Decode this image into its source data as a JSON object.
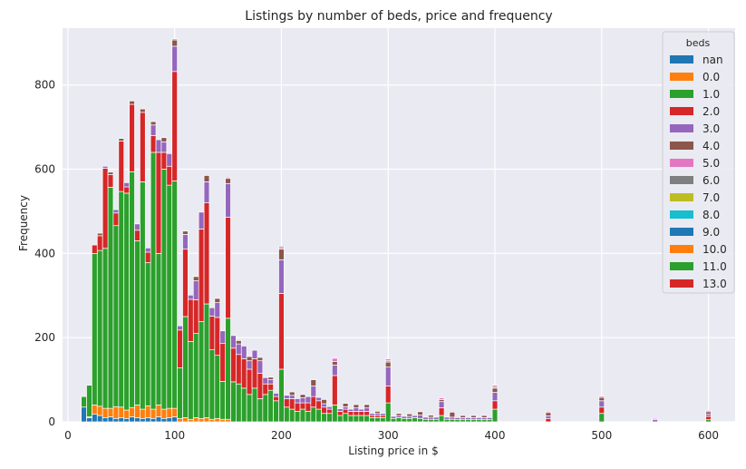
{
  "chart_data": {
    "type": "bar",
    "stacked": true,
    "title": "Listings by number of beds, price and frequency",
    "xlabel": "Listing price in $",
    "ylabel": "Frequency",
    "xlim": [
      -5,
      625
    ],
    "ylim": [
      0,
      935
    ],
    "xticks": [
      0,
      100,
      200,
      300,
      400,
      500,
      600
    ],
    "yticks": [
      0,
      200,
      400,
      600,
      800
    ],
    "grid": true,
    "bin_width": 5,
    "legend": {
      "title": "beds",
      "position": "top-right",
      "entries": [
        "nan",
        "0.0",
        "1.0",
        "2.0",
        "3.0",
        "4.0",
        "5.0",
        "6.0",
        "7.0",
        "8.0",
        "9.0",
        "10.0",
        "11.0",
        "13.0"
      ]
    },
    "series": [
      {
        "name": "nan",
        "color": "#1f77b4",
        "x": [
          15,
          20,
          25,
          30,
          35,
          40,
          45,
          50,
          55,
          60,
          65,
          70,
          75,
          80,
          85,
          90,
          95,
          100
        ],
        "values": [
          35,
          10,
          18,
          15,
          10,
          12,
          8,
          10,
          8,
          12,
          10,
          8,
          10,
          8,
          12,
          8,
          10,
          12
        ]
      },
      {
        "name": "0.0",
        "color": "#ff7f0e",
        "x": [
          20,
          25,
          30,
          35,
          40,
          45,
          50,
          55,
          60,
          65,
          70,
          75,
          80,
          85,
          90,
          95,
          100,
          105,
          110,
          115,
          120,
          125,
          130,
          135,
          140,
          145,
          150
        ],
        "values": [
          2,
          22,
          22,
          22,
          20,
          28,
          25,
          20,
          22,
          30,
          22,
          28,
          22,
          28,
          22,
          22,
          20,
          8,
          10,
          6,
          10,
          8,
          10,
          6,
          8,
          6,
          6
        ]
      },
      {
        "name": "1.0",
        "color": "#2ca02c",
        "x": [
          15,
          20,
          25,
          30,
          35,
          40,
          45,
          50,
          55,
          60,
          65,
          70,
          75,
          80,
          85,
          90,
          95,
          100,
          105,
          110,
          115,
          120,
          125,
          130,
          135,
          140,
          145,
          150,
          155,
          160,
          165,
          170,
          175,
          180,
          185,
          190,
          195,
          200,
          205,
          210,
          215,
          220,
          225,
          230,
          235,
          240,
          245,
          250,
          255,
          260,
          265,
          270,
          275,
          280,
          285,
          290,
          295,
          300,
          305,
          310,
          315,
          320,
          325,
          330,
          335,
          340,
          345,
          350,
          355,
          360,
          365,
          370,
          375,
          380,
          385,
          390,
          395,
          400,
          500,
          600
        ],
        "values": [
          25,
          75,
          360,
          370,
          380,
          525,
          430,
          512,
          515,
          560,
          390,
          540,
          340,
          610,
          360,
          570,
          530,
          540,
          120,
          240,
          185,
          200,
          230,
          270,
          165,
          150,
          90,
          240,
          95,
          90,
          80,
          65,
          80,
          55,
          65,
          75,
          50,
          125,
          35,
          30,
          25,
          30,
          25,
          35,
          30,
          20,
          20,
          40,
          15,
          20,
          15,
          15,
          15,
          15,
          10,
          10,
          10,
          45,
          8,
          10,
          8,
          8,
          10,
          8,
          6,
          6,
          6,
          15,
          6,
          6,
          5,
          5,
          5,
          5,
          5,
          5,
          5,
          30,
          20,
          5
        ]
      },
      {
        "name": "2.0",
        "color": "#d62728",
        "x": [
          25,
          30,
          35,
          40,
          45,
          50,
          55,
          60,
          65,
          70,
          75,
          80,
          85,
          90,
          95,
          100,
          105,
          110,
          115,
          120,
          125,
          130,
          135,
          140,
          145,
          150,
          155,
          160,
          165,
          170,
          175,
          180,
          185,
          190,
          195,
          200,
          205,
          210,
          215,
          220,
          225,
          230,
          235,
          240,
          245,
          250,
          255,
          260,
          265,
          270,
          275,
          280,
          285,
          290,
          295,
          300,
          350,
          400,
          450,
          500,
          600
        ],
        "values": [
          20,
          35,
          190,
          30,
          30,
          120,
          15,
          160,
          25,
          165,
          25,
          40,
          240,
          40,
          45,
          260,
          90,
          160,
          100,
          80,
          220,
          240,
          80,
          90,
          90,
          240,
          80,
          70,
          70,
          60,
          70,
          60,
          25,
          15,
          10,
          180,
          20,
          25,
          20,
          15,
          20,
          25,
          20,
          15,
          10,
          70,
          10,
          10,
          10,
          10,
          10,
          10,
          5,
          5,
          5,
          40,
          18,
          20,
          8,
          15,
          8
        ]
      },
      {
        "name": "3.0",
        "color": "#9467bd",
        "x": [
          35,
          45,
          55,
          65,
          75,
          80,
          85,
          90,
          95,
          100,
          105,
          110,
          115,
          120,
          125,
          130,
          135,
          140,
          145,
          150,
          155,
          160,
          165,
          170,
          175,
          180,
          185,
          190,
          195,
          200,
          205,
          210,
          215,
          220,
          225,
          230,
          235,
          240,
          245,
          250,
          255,
          260,
          265,
          270,
          275,
          280,
          285,
          290,
          295,
          300,
          305,
          310,
          315,
          320,
          325,
          330,
          335,
          340,
          345,
          350,
          355,
          360,
          365,
          370,
          375,
          380,
          385,
          390,
          395,
          400,
          450,
          500,
          550,
          600
        ],
        "values": [
          5,
          8,
          10,
          15,
          10,
          25,
          30,
          25,
          30,
          60,
          10,
          35,
          10,
          45,
          40,
          50,
          20,
          35,
          30,
          80,
          30,
          25,
          30,
          20,
          20,
          30,
          15,
          10,
          8,
          80,
          8,
          8,
          10,
          12,
          15,
          25,
          8,
          8,
          6,
          25,
          6,
          6,
          5,
          8,
          5,
          8,
          5,
          5,
          5,
          45,
          5,
          5,
          5,
          5,
          5,
          8,
          5,
          5,
          5,
          15,
          5,
          5,
          5,
          5,
          5,
          5,
          5,
          5,
          5,
          20,
          6,
          15,
          5,
          5
        ]
      },
      {
        "name": "4.0",
        "color": "#8c564b",
        "x": [
          30,
          40,
          50,
          60,
          70,
          80,
          90,
          100,
          110,
          120,
          130,
          140,
          150,
          160,
          170,
          180,
          190,
          200,
          210,
          220,
          230,
          240,
          250,
          260,
          270,
          280,
          290,
          300,
          310,
          320,
          330,
          340,
          350,
          360,
          370,
          380,
          390,
          400,
          450,
          500,
          600
        ],
        "values": [
          6,
          6,
          6,
          8,
          8,
          8,
          10,
          15,
          8,
          10,
          15,
          10,
          12,
          8,
          10,
          8,
          6,
          25,
          8,
          8,
          15,
          10,
          8,
          8,
          8,
          8,
          5,
          12,
          5,
          6,
          8,
          5,
          5,
          12,
          5,
          5,
          5,
          10,
          8,
          8,
          6
        ]
      },
      {
        "name": "5.0",
        "color": "#e377c2",
        "x": [
          100,
          150,
          200,
          250,
          300,
          350,
          400,
          450,
          500,
          550,
          600
        ],
        "values": [
          3,
          3,
          4,
          8,
          4,
          4,
          4,
          3,
          3,
          3,
          3
        ]
      },
      {
        "name": "6.0",
        "color": "#7f7f7f",
        "x": [
          200,
          300,
          400
        ],
        "values": [
          3,
          3,
          3
        ]
      },
      {
        "name": "7.0",
        "color": "#bcbd22",
        "x": [],
        "values": []
      },
      {
        "name": "8.0",
        "color": "#17becf",
        "x": [],
        "values": []
      },
      {
        "name": "9.0",
        "color": "#1f77b4",
        "x": [],
        "values": []
      },
      {
        "name": "10.0",
        "color": "#ff7f0e",
        "x": [],
        "values": []
      },
      {
        "name": "11.0",
        "color": "#2ca02c",
        "x": [],
        "values": []
      },
      {
        "name": "13.0",
        "color": "#d62728",
        "x": [],
        "values": []
      }
    ]
  }
}
